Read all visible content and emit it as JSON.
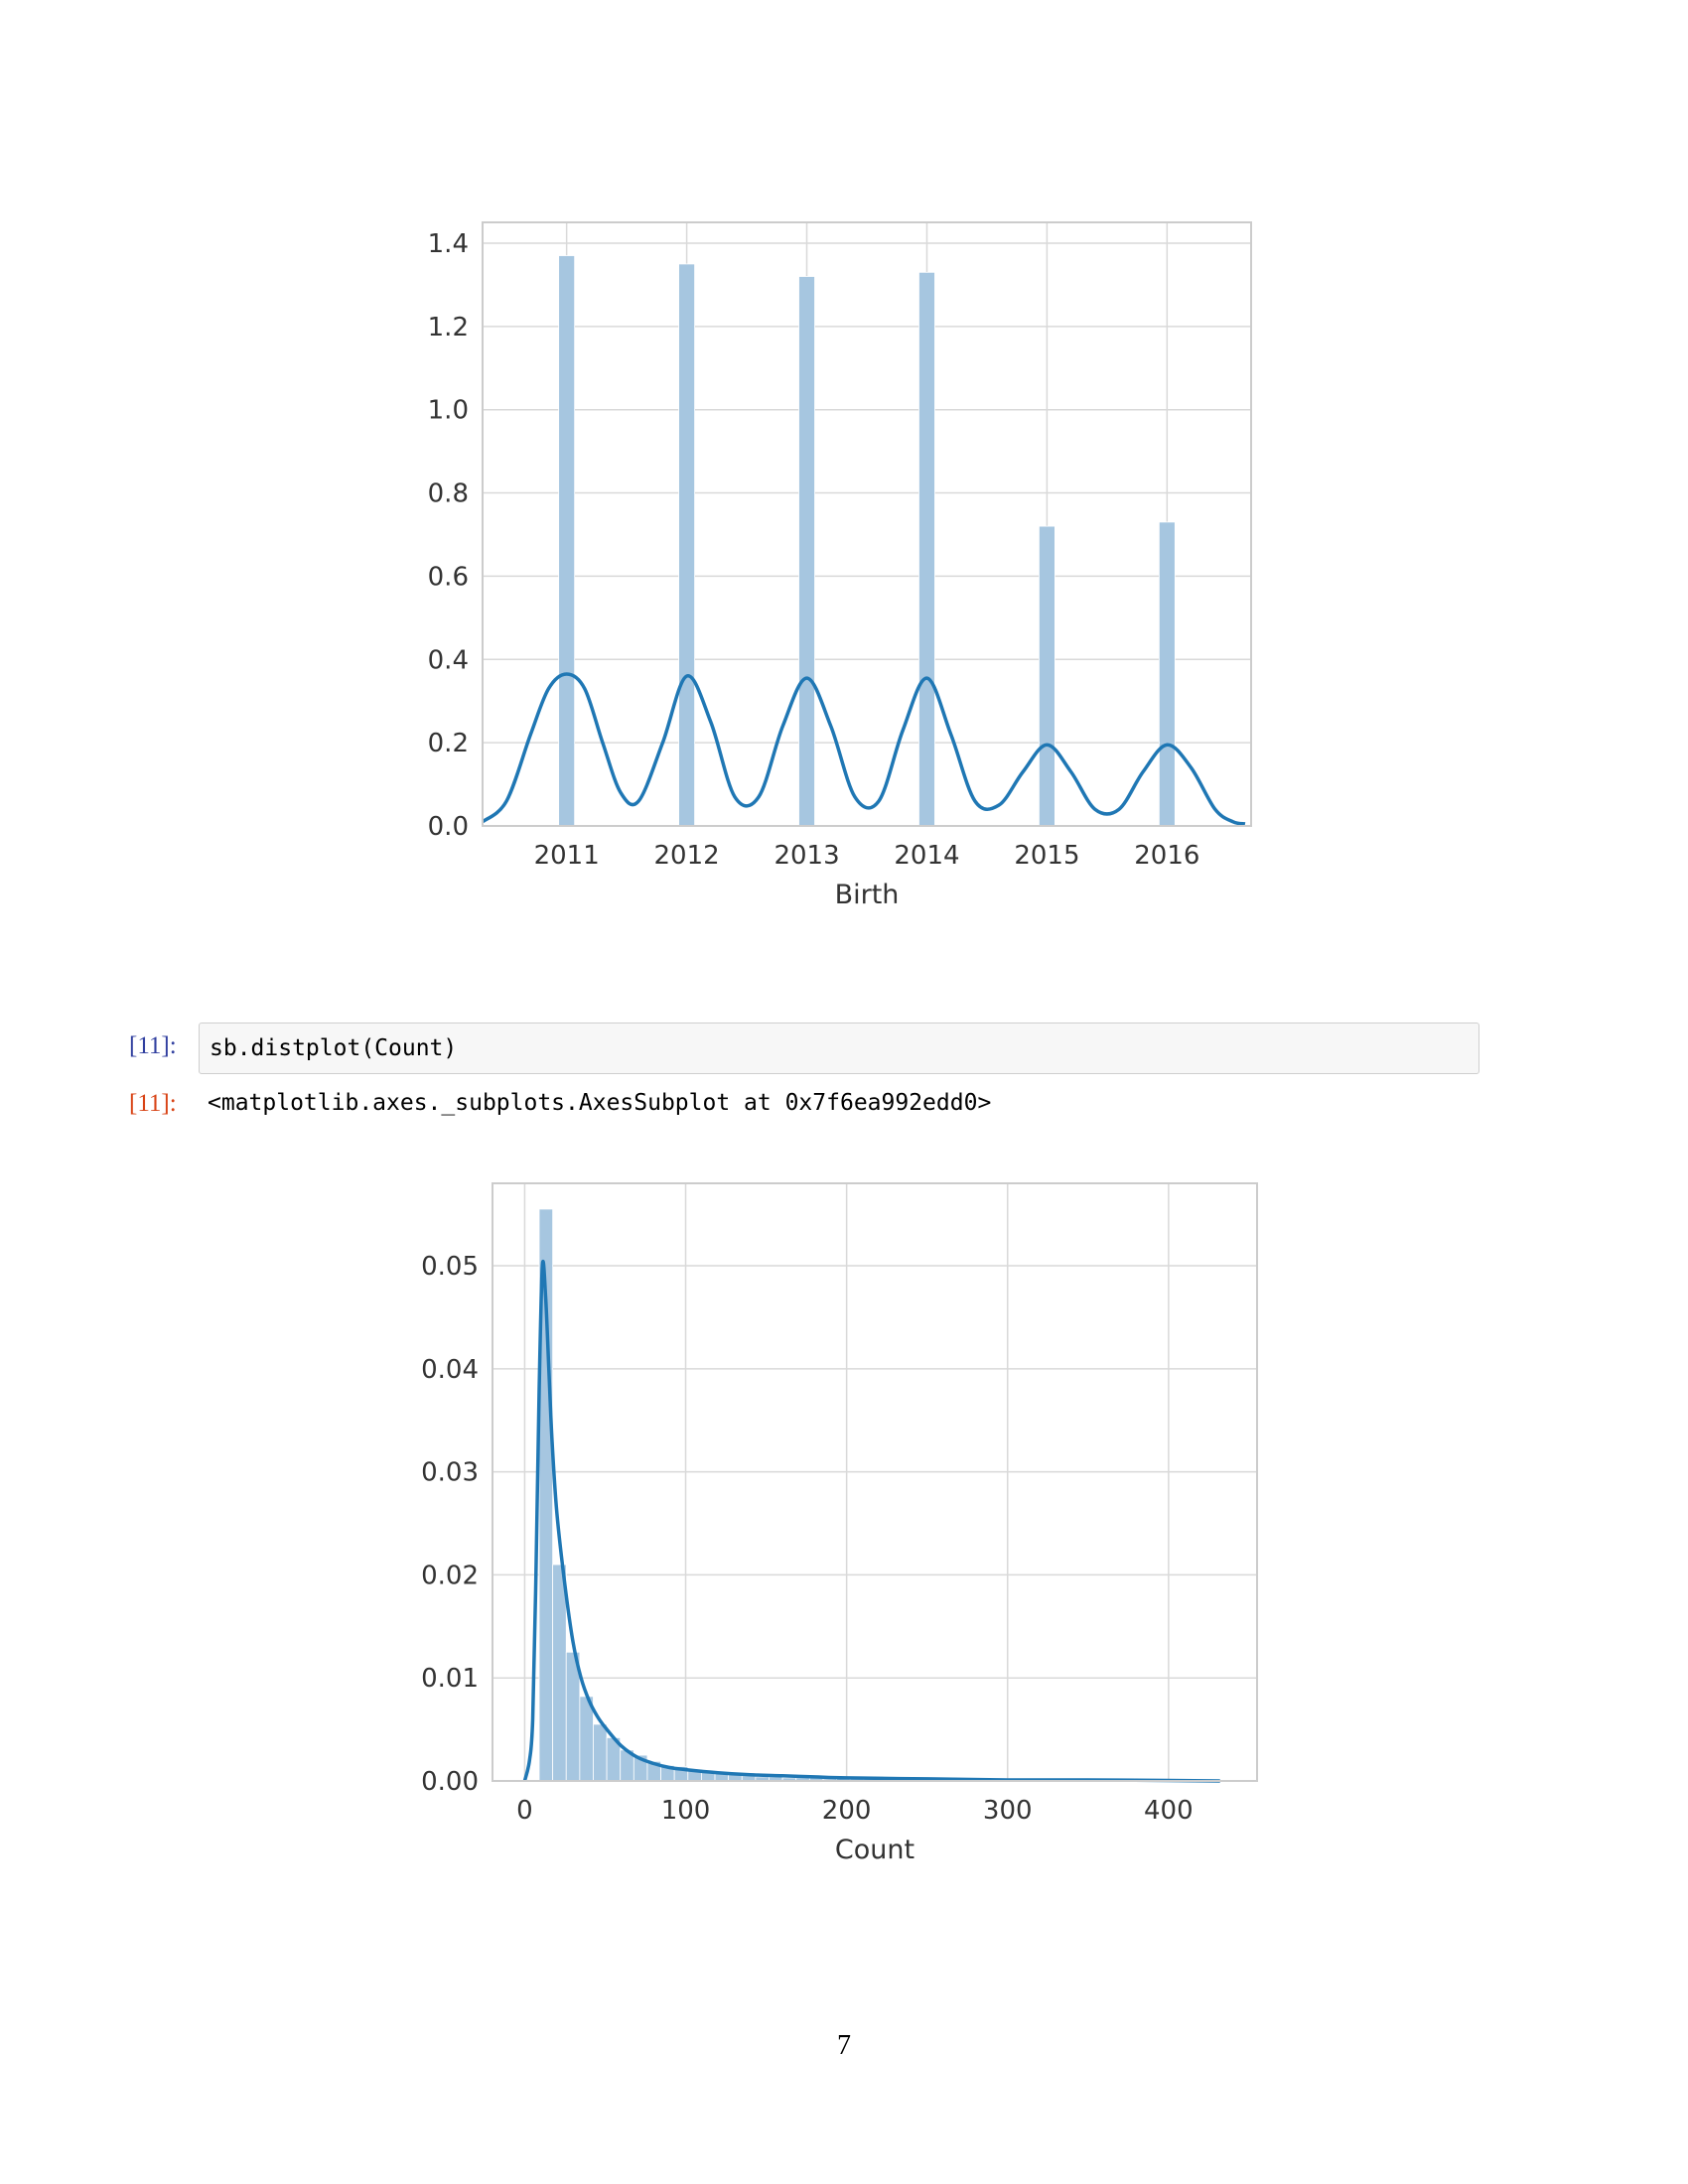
{
  "cells": {
    "input_prompt": "[11]:",
    "output_prompt": "[11]:",
    "code": "sb.distplot(Count)",
    "output": "<matplotlib.axes._subplots.AxesSubplot at 0x7f6ea992edd0>"
  },
  "page_number": "7",
  "colors": {
    "bar": "#a6c6e0",
    "kde": "#1f77b4",
    "grid": "#d9d9d9",
    "frame": "#cccccc",
    "tick": "#333333"
  },
  "chart_data": [
    {
      "type": "bar",
      "xlabel": "Birth",
      "ylabel": "",
      "xlim": [
        2010.3,
        2016.7
      ],
      "ylim": [
        0,
        1.45
      ],
      "xticks": [
        2011,
        2012,
        2013,
        2014,
        2015,
        2016
      ],
      "xtick_labels": [
        "2011",
        "2012",
        "2013",
        "2014",
        "2015",
        "2016"
      ],
      "yticks": [
        0.0,
        0.2,
        0.4,
        0.6,
        0.8,
        1.0,
        1.2,
        1.4
      ],
      "ytick_labels": [
        "0.0",
        "0.2",
        "0.4",
        "0.6",
        "0.8",
        "1.0",
        "1.2",
        "1.4"
      ],
      "grid": true,
      "series": [
        {
          "kind": "histogram",
          "bars": [
            {
              "x": 2011,
              "value": 1.37
            },
            {
              "x": 2012,
              "value": 1.35
            },
            {
              "x": 2013,
              "value": 1.32
            },
            {
              "x": 2014,
              "value": 1.33
            },
            {
              "x": 2015,
              "value": 0.72
            },
            {
              "x": 2016,
              "value": 0.73
            }
          ]
        },
        {
          "kind": "kde",
          "x": [
            2010.3,
            2010.5,
            2010.7,
            2010.85,
            2011,
            2011.15,
            2011.3,
            2011.45,
            2011.6,
            2011.8,
            2012,
            2012.2,
            2012.4,
            2012.6,
            2012.8,
            2013,
            2013.2,
            2013.4,
            2013.6,
            2013.8,
            2014,
            2014.2,
            2014.4,
            2014.6,
            2014.8,
            2015,
            2015.2,
            2015.4,
            2015.6,
            2015.8,
            2016,
            2016.2,
            2016.4,
            2016.55,
            2016.65
          ],
          "y": [
            0.01,
            0.06,
            0.22,
            0.33,
            0.365,
            0.33,
            0.2,
            0.08,
            0.06,
            0.2,
            0.36,
            0.25,
            0.07,
            0.07,
            0.24,
            0.355,
            0.24,
            0.07,
            0.06,
            0.23,
            0.355,
            0.22,
            0.06,
            0.05,
            0.13,
            0.195,
            0.13,
            0.04,
            0.04,
            0.13,
            0.195,
            0.14,
            0.04,
            0.01,
            0.005
          ]
        }
      ]
    },
    {
      "type": "bar",
      "xlabel": "Count",
      "ylabel": "",
      "xlim": [
        -20,
        455
      ],
      "ylim": [
        0,
        0.058
      ],
      "xticks": [
        0,
        100,
        200,
        300,
        400
      ],
      "xtick_labels": [
        "0",
        "100",
        "200",
        "300",
        "400"
      ],
      "yticks": [
        0.0,
        0.01,
        0.02,
        0.03,
        0.04,
        0.05
      ],
      "ytick_labels": [
        "0.00",
        "0.01",
        "0.02",
        "0.03",
        "0.04",
        "0.05"
      ],
      "grid": true,
      "series": [
        {
          "kind": "histogram",
          "bin_width": 8.4,
          "bin_start": 9,
          "values": [
            0.0555,
            0.021,
            0.0125,
            0.0082,
            0.0055,
            0.0042,
            0.003,
            0.0025,
            0.0019,
            0.0015,
            0.0014,
            0.0011,
            0.0009,
            0.0008,
            0.0006,
            0.0005,
            0.0004,
            0.0004,
            0.0003,
            0.0003,
            0.0003,
            0.0002,
            0.0002,
            0.0002,
            0.0002,
            0.0001,
            0.0001,
            0.0001,
            0.0001,
            0.0001,
            0.0001,
            0.0001,
            0.0001,
            0.0001,
            5e-05,
            5e-05,
            5e-05,
            5e-05,
            5e-05,
            5e-05,
            5e-05,
            5e-05,
            5e-05,
            5e-05,
            5e-05,
            5e-05,
            5e-05,
            5e-05,
            5e-05,
            5e-05
          ]
        },
        {
          "kind": "kde",
          "x": [
            0,
            3,
            5,
            7,
            9,
            11,
            13,
            15,
            17,
            20,
            25,
            30,
            35,
            40,
            45,
            50,
            60,
            70,
            80,
            90,
            100,
            120,
            140,
            160,
            180,
            200,
            250,
            300,
            350,
            400,
            432
          ],
          "y": [
            0.0,
            0.002,
            0.006,
            0.02,
            0.038,
            0.05,
            0.047,
            0.04,
            0.033,
            0.026,
            0.019,
            0.0135,
            0.01,
            0.0078,
            0.0063,
            0.0052,
            0.0034,
            0.0023,
            0.0017,
            0.0013,
            0.0011,
            0.0008,
            0.0006,
            0.0005,
            0.0004,
            0.0003,
            0.0002,
            0.0001,
            0.0001,
            5e-05,
            0.0
          ]
        }
      ]
    }
  ]
}
